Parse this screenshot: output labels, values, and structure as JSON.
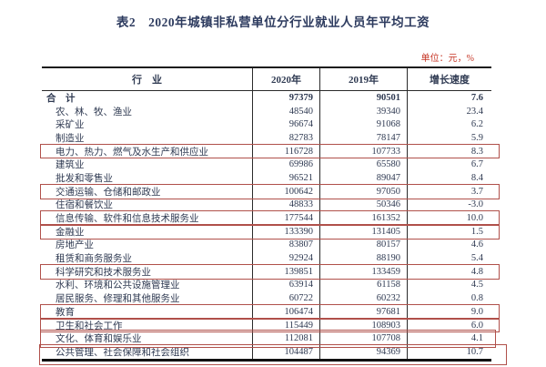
{
  "page": {
    "title": "表2　2020年城镇非私营单位分行业就业人员年平均工资",
    "unit_note": "单位：元，%"
  },
  "table": {
    "columns": [
      "行　业",
      "2020年",
      "2019年",
      "增长速度"
    ],
    "rows": [
      {
        "industry": "合　计",
        "y2020": "97379",
        "y2019": "90501",
        "growth": "7.6",
        "is_total": true,
        "highlighted": false
      },
      {
        "industry": "农、林、牧、渔业",
        "y2020": "48540",
        "y2019": "39340",
        "growth": "23.4",
        "is_total": false,
        "highlighted": false
      },
      {
        "industry": "采矿业",
        "y2020": "96674",
        "y2019": "91068",
        "growth": "6.2",
        "is_total": false,
        "highlighted": false
      },
      {
        "industry": "制造业",
        "y2020": "82783",
        "y2019": "78147",
        "growth": "5.9",
        "is_total": false,
        "highlighted": false
      },
      {
        "industry": "电力、热力、燃气及水生产和供应业",
        "y2020": "116728",
        "y2019": "107733",
        "growth": "8.3",
        "is_total": false,
        "highlighted": true
      },
      {
        "industry": "建筑业",
        "y2020": "69986",
        "y2019": "65580",
        "growth": "6.7",
        "is_total": false,
        "highlighted": false
      },
      {
        "industry": "批发和零售业",
        "y2020": "96521",
        "y2019": "89047",
        "growth": "8.4",
        "is_total": false,
        "highlighted": false
      },
      {
        "industry": "交通运输、仓储和邮政业",
        "y2020": "100642",
        "y2019": "97050",
        "growth": "3.7",
        "is_total": false,
        "highlighted": true
      },
      {
        "industry": "住宿和餐饮业",
        "y2020": "48833",
        "y2019": "50346",
        "growth": "-3.0",
        "is_total": false,
        "highlighted": false
      },
      {
        "industry": "信息传输、软件和信息技术服务业",
        "y2020": "177544",
        "y2019": "161352",
        "growth": "10.0",
        "is_total": false,
        "highlighted": true
      },
      {
        "industry": "金融业",
        "y2020": "133390",
        "y2019": "131405",
        "growth": "1.5",
        "is_total": false,
        "highlighted": true
      },
      {
        "industry": "房地产业",
        "y2020": "83807",
        "y2019": "80157",
        "growth": "4.6",
        "is_total": false,
        "highlighted": false
      },
      {
        "industry": "租赁和商务服务业",
        "y2020": "92924",
        "y2019": "88190",
        "growth": "5.4",
        "is_total": false,
        "highlighted": false
      },
      {
        "industry": "科学研究和技术服务业",
        "y2020": "139851",
        "y2019": "133459",
        "growth": "4.8",
        "is_total": false,
        "highlighted": true
      },
      {
        "industry": "水利、环境和公共设施管理业",
        "y2020": "63914",
        "y2019": "61158",
        "growth": "4.5",
        "is_total": false,
        "highlighted": false
      },
      {
        "industry": "居民服务、修理和其他服务业",
        "y2020": "60722",
        "y2019": "60232",
        "growth": "0.8",
        "is_total": false,
        "highlighted": false
      },
      {
        "industry": "教育",
        "y2020": "106474",
        "y2019": "97681",
        "growth": "9.0",
        "is_total": false,
        "highlighted": true
      },
      {
        "industry": "卫生和社会工作",
        "y2020": "115449",
        "y2019": "108903",
        "growth": "6.0",
        "is_total": false,
        "highlighted": true
      },
      {
        "industry": "文化、体育和娱乐业",
        "y2020": "112081",
        "y2019": "107708",
        "growth": "4.1",
        "is_total": false,
        "highlighted": true
      },
      {
        "industry": "公共管理、社会保障和社会组织",
        "y2020": "104487",
        "y2019": "94369",
        "growth": "10.7",
        "is_total": false,
        "highlighted": true
      }
    ]
  },
  "colors": {
    "highlight_box": "#b0504a",
    "unit_text": "#c63626",
    "title_text": "#2c3a5e",
    "body_text": "#2f3a52"
  }
}
